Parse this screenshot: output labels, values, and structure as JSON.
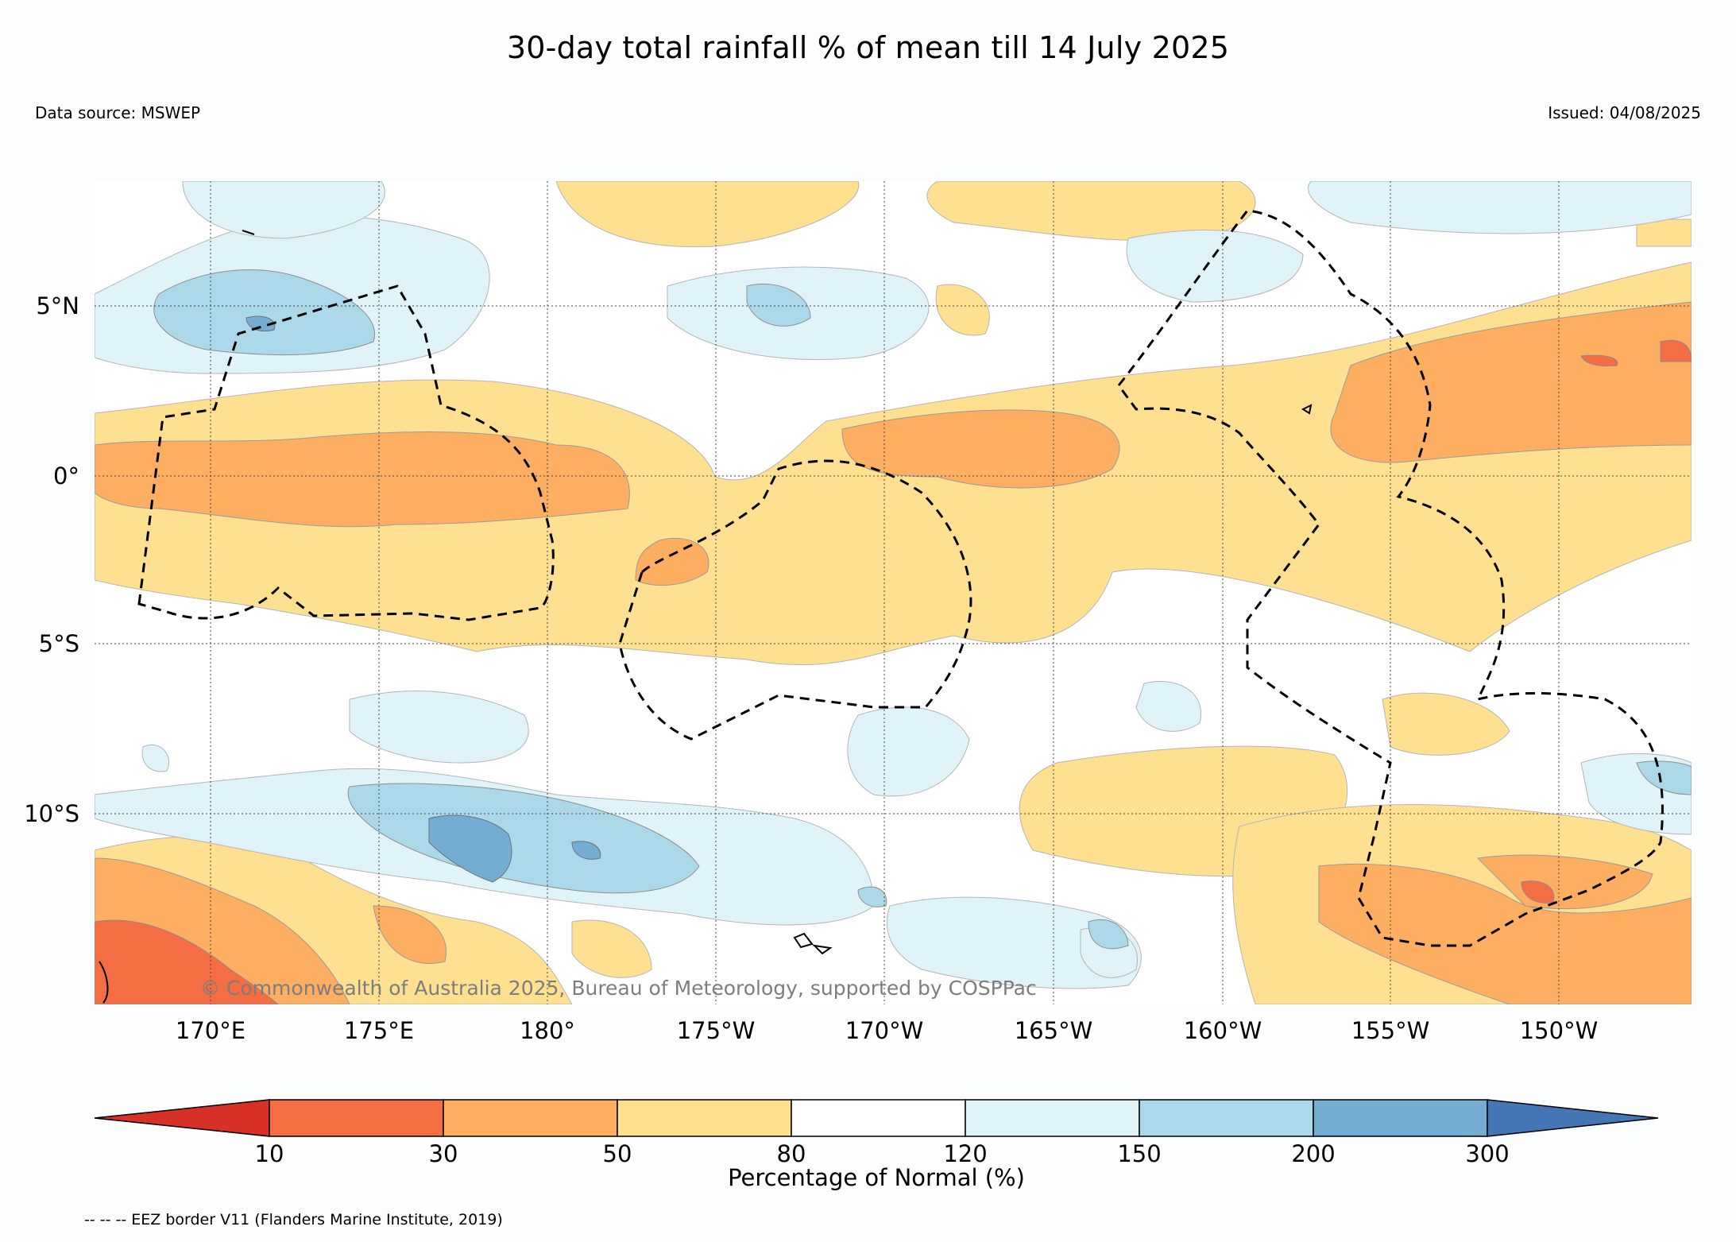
{
  "title": "30-day total rainfall % of mean till 14 July 2025",
  "data_source": "Data source: MSWEP",
  "issued": "Issued: 04/08/2025",
  "copyright": "© Commonwealth of Australia 2025, Bureau of Meteorology, supported by COSPPac",
  "eez_note": "-- -- -- EEZ border V11 (Flanders Marine Institute, 2019)",
  "lat_labels": [
    "5°N",
    "0°",
    "5°S",
    "10°S"
  ],
  "lon_labels": [
    "170°E",
    "175°E",
    "180°",
    "175°W",
    "170°W",
    "165°W",
    "160°W",
    "155°W",
    "150°W"
  ],
  "colorbar": {
    "title": "Percentage of Normal (%)",
    "ticks": [
      "10",
      "30",
      "50",
      "80",
      "120",
      "150",
      "200",
      "300"
    ],
    "colors": {
      "below_10": "#d73027",
      "10_30": "#f46d43",
      "30_50": "#fdae61",
      "50_80": "#fee090",
      "80_120": "#ffffff",
      "120_150": "#e0f3f8",
      "150_200": "#abd9e9",
      "200_300": "#74add1",
      "above_300": "#4575b4"
    }
  }
}
